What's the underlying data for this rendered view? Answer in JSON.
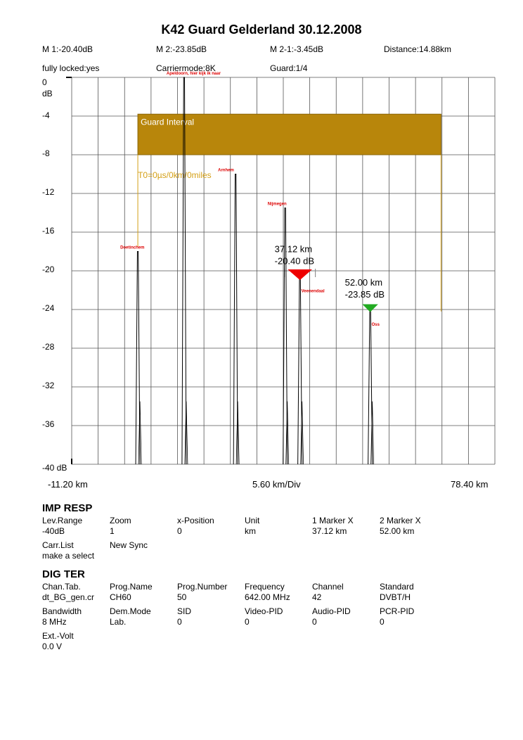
{
  "header": {
    "title": "K42 Guard Gelderland 30.12.2008",
    "row1": [
      "M 1:-20.40dB",
      "M 2:-23.85dB",
      "M 2-1:-3.45dB",
      "Distance:14.88km"
    ],
    "row2": [
      "fully locked:yes",
      "Carriermode:8K",
      "Guard:1/4"
    ]
  },
  "colors": {
    "guard_fill": "#b8860b",
    "guard_text": "#ffffff",
    "t0_text": "#d4a017",
    "label_red": "#dd0000",
    "marker1": "#ee0000",
    "marker2": "#22aa22",
    "grid": "#555555"
  },
  "chart_data": {
    "type": "line",
    "title": "K42 Guard Gelderland 30.12.2008",
    "y_unit": "dB",
    "ylim": [
      -40,
      0
    ],
    "y_ticks": [
      "0",
      "-4",
      "-8",
      "-12",
      "-16",
      "-20",
      "-24",
      "-28",
      "-32",
      "-36",
      "-40 dB"
    ],
    "y_unit_label": "dB",
    "xlim": [
      -11.2,
      78.4
    ],
    "x_labels": {
      "left": "-11.20 km",
      "center": "5.60 km/Div",
      "right": "78.40 km"
    },
    "grid": true,
    "guard_interval": {
      "label": "Guard Interval",
      "x_start": 2.8,
      "x_end": 67.0,
      "y_top": -3.8,
      "y_bottom": -8.0
    },
    "t0_label": "T0=0µs/0km/0miles",
    "echoes": [
      {
        "name": "Doetinchem",
        "x": 2.8,
        "y": -18.0
      },
      {
        "name": "Apeldoorn, hier kijk ik naar",
        "x": 12.6,
        "y": 0.0
      },
      {
        "name": "Arnhem",
        "x": 23.5,
        "y": -10.0
      },
      {
        "name": "Nijmegen",
        "x": 34.0,
        "y": -13.5
      },
      {
        "name": "Veenendaal",
        "x": 37.12,
        "y": -20.4
      },
      {
        "name": "Oss",
        "x": 52.0,
        "y": -23.85
      }
    ],
    "markers": [
      {
        "id": "1",
        "x": 37.12,
        "y": -20.4,
        "dist_label": "37.12 km",
        "level_label": "-20.40 dB"
      },
      {
        "id": "2",
        "x": 52.0,
        "y": -23.85,
        "dist_label": "52.00 km",
        "level_label": "-23.85 dB"
      }
    ]
  },
  "imp_resp": {
    "title": "IMP RESP",
    "cells": [
      {
        "label": "Lev.Range",
        "value": "-40dB"
      },
      {
        "label": "Zoom",
        "value": "1"
      },
      {
        "label": "x-Position",
        "value": "0"
      },
      {
        "label": "Unit",
        "value": "km"
      },
      {
        "label": "1 Marker X",
        "value": "37.12 km"
      },
      {
        "label": "2 Marker X",
        "value": "52.00 km"
      },
      {
        "label": "Carr.List",
        "value": "make a select"
      },
      {
        "label": "New Sync",
        "value": ""
      }
    ]
  },
  "dig_ter": {
    "title": "DIG TER",
    "cells": [
      {
        "label": "Chan.Tab.",
        "value": "dt_BG_gen.cr"
      },
      {
        "label": "Prog.Name",
        "value": "CH60"
      },
      {
        "label": "Prog.Number",
        "value": "50"
      },
      {
        "label": "Frequency",
        "value": "642.00 MHz"
      },
      {
        "label": "Channel",
        "value": "42"
      },
      {
        "label": "Standard",
        "value": "DVBT/H"
      },
      {
        "label": "Bandwidth",
        "value": "8 MHz"
      },
      {
        "label": "Dem.Mode",
        "value": "Lab."
      },
      {
        "label": "SID",
        "value": "0"
      },
      {
        "label": "Video-PID",
        "value": "0"
      },
      {
        "label": "Audio-PID",
        "value": "0"
      },
      {
        "label": "PCR-PID",
        "value": "0"
      },
      {
        "label": "Ext.-Volt",
        "value": "0.0 V"
      }
    ]
  }
}
